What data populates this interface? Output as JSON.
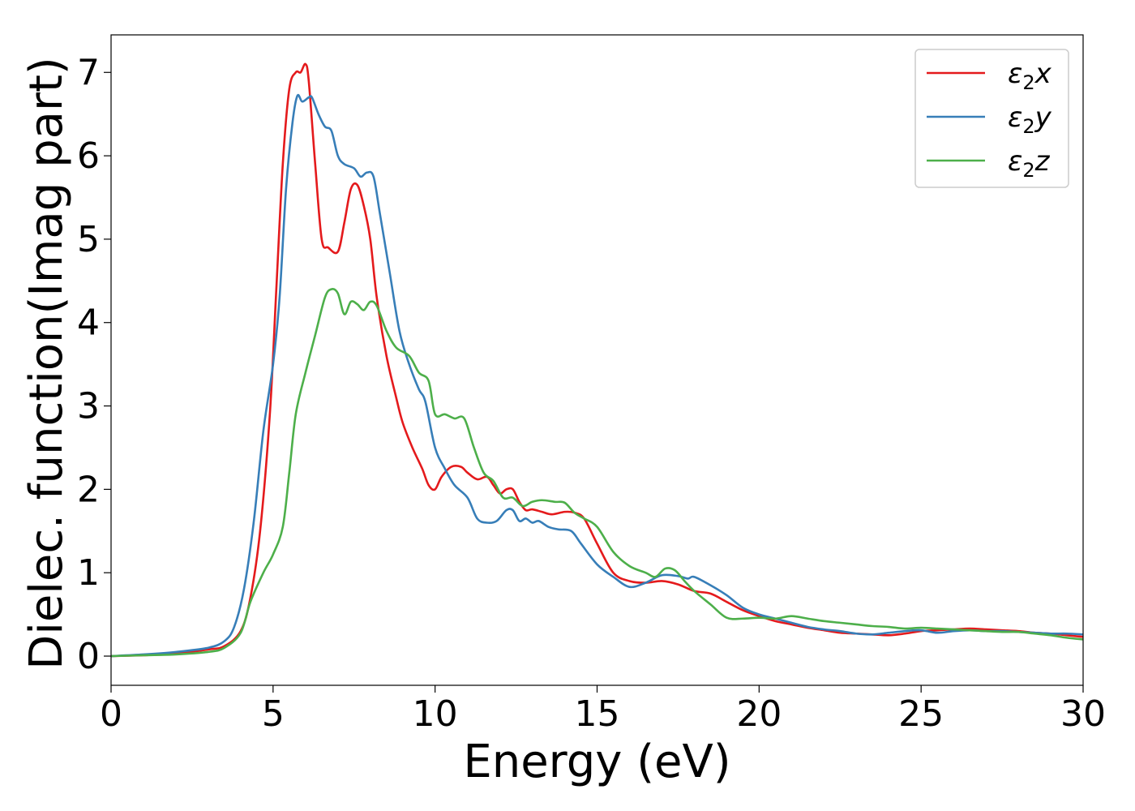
{
  "chart_data": {
    "type": "line",
    "title": "",
    "xlabel": "Energy (eV)",
    "ylabel": "Dielec. function(Imag part)",
    "xlim": [
      0,
      30
    ],
    "ylim": [
      -0.35,
      7.45
    ],
    "xticks": [
      0,
      5,
      10,
      15,
      20,
      25,
      30
    ],
    "yticks": [
      0,
      1,
      2,
      3,
      4,
      5,
      6,
      7
    ],
    "grid": false,
    "legend_position": "top-right",
    "series": [
      {
        "name": "ε2x",
        "legend_base": "ε",
        "legend_sub": "2",
        "legend_var": "x",
        "color": "#e41a1c",
        "x": [
          0,
          1,
          2,
          3,
          3.5,
          4,
          4.3,
          4.6,
          4.9,
          5.1,
          5.3,
          5.5,
          5.7,
          5.85,
          6.0,
          6.1,
          6.3,
          6.5,
          6.7,
          7.0,
          7.2,
          7.4,
          7.6,
          7.8,
          8.0,
          8.2,
          8.5,
          8.8,
          9.0,
          9.3,
          9.6,
          9.8,
          10.0,
          10.2,
          10.5,
          10.8,
          11.0,
          11.3,
          11.6,
          11.8,
          12.0,
          12.2,
          12.4,
          12.6,
          12.8,
          13.0,
          13.3,
          13.6,
          14.0,
          14.3,
          14.6,
          15.0,
          15.5,
          16.0,
          16.5,
          17.0,
          17.5,
          18.0,
          18.5,
          19.0,
          19.5,
          20.0,
          20.5,
          21.0,
          21.5,
          22.0,
          22.5,
          23.0,
          23.5,
          24.0,
          24.5,
          25.0,
          25.5,
          26.0,
          26.5,
          27.0,
          27.5,
          28.0,
          28.5,
          29.0,
          29.5,
          30.0
        ],
        "y": [
          0.0,
          0.01,
          0.03,
          0.08,
          0.12,
          0.3,
          0.7,
          1.5,
          2.9,
          4.4,
          5.9,
          6.8,
          7.0,
          7.0,
          7.1,
          6.9,
          5.9,
          5.0,
          4.9,
          4.85,
          5.2,
          5.6,
          5.65,
          5.4,
          5.0,
          4.3,
          3.6,
          3.1,
          2.8,
          2.5,
          2.25,
          2.05,
          2.0,
          2.15,
          2.27,
          2.27,
          2.2,
          2.12,
          2.15,
          2.05,
          1.95,
          2.0,
          2.0,
          1.85,
          1.75,
          1.76,
          1.73,
          1.7,
          1.73,
          1.72,
          1.65,
          1.35,
          1.0,
          0.9,
          0.88,
          0.9,
          0.86,
          0.78,
          0.75,
          0.65,
          0.55,
          0.48,
          0.42,
          0.38,
          0.34,
          0.31,
          0.28,
          0.27,
          0.26,
          0.25,
          0.27,
          0.3,
          0.31,
          0.32,
          0.33,
          0.32,
          0.31,
          0.3,
          0.28,
          0.27,
          0.25,
          0.23
        ]
      },
      {
        "name": "ε2y",
        "legend_base": "ε",
        "legend_sub": "2",
        "legend_var": "y",
        "color": "#377eb8",
        "x": [
          0,
          1,
          2,
          3,
          3.5,
          3.8,
          4.1,
          4.4,
          4.7,
          5.0,
          5.2,
          5.4,
          5.6,
          5.75,
          5.9,
          6.1,
          6.2,
          6.4,
          6.6,
          6.8,
          7.0,
          7.2,
          7.5,
          7.7,
          7.9,
          8.1,
          8.3,
          8.6,
          8.9,
          9.2,
          9.5,
          9.7,
          10.0,
          10.3,
          10.6,
          11.0,
          11.3,
          11.6,
          11.9,
          12.2,
          12.4,
          12.6,
          12.8,
          13.0,
          13.2,
          13.5,
          13.8,
          14.2,
          14.5,
          15.0,
          15.5,
          16.0,
          16.5,
          17.0,
          17.5,
          17.8,
          18.0,
          18.5,
          19.0,
          19.5,
          20.0,
          20.5,
          21.0,
          21.5,
          22.0,
          22.5,
          23.0,
          23.5,
          24.0,
          24.5,
          25.0,
          25.5,
          26.0,
          26.5,
          27.0,
          27.5,
          28.0,
          28.5,
          29.0,
          29.5,
          30.0
        ],
        "y": [
          0.0,
          0.02,
          0.05,
          0.1,
          0.18,
          0.35,
          0.8,
          1.6,
          2.7,
          3.5,
          4.3,
          5.6,
          6.4,
          6.72,
          6.65,
          6.7,
          6.7,
          6.5,
          6.35,
          6.3,
          6.0,
          5.9,
          5.85,
          5.75,
          5.8,
          5.75,
          5.3,
          4.6,
          3.9,
          3.5,
          3.2,
          3.05,
          2.5,
          2.25,
          2.05,
          1.9,
          1.65,
          1.6,
          1.62,
          1.75,
          1.75,
          1.62,
          1.65,
          1.6,
          1.62,
          1.55,
          1.52,
          1.5,
          1.35,
          1.1,
          0.95,
          0.83,
          0.88,
          0.97,
          0.96,
          0.93,
          0.95,
          0.85,
          0.73,
          0.58,
          0.5,
          0.45,
          0.4,
          0.35,
          0.32,
          0.3,
          0.27,
          0.26,
          0.28,
          0.3,
          0.31,
          0.28,
          0.3,
          0.31,
          0.3,
          0.3,
          0.29,
          0.28,
          0.27,
          0.27,
          0.26
        ]
      },
      {
        "name": "ε2z",
        "legend_base": "ε",
        "legend_sub": "2",
        "legend_var": "z",
        "color": "#4daf4a",
        "x": [
          0,
          1,
          2,
          3,
          3.5,
          4.0,
          4.3,
          4.7,
          5.0,
          5.3,
          5.5,
          5.7,
          6.0,
          6.3,
          6.6,
          6.8,
          7.0,
          7.2,
          7.4,
          7.6,
          7.8,
          8.0,
          8.2,
          8.5,
          8.8,
          9.2,
          9.5,
          9.8,
          10.0,
          10.3,
          10.6,
          10.9,
          11.2,
          11.5,
          11.8,
          12.1,
          12.4,
          12.7,
          13.0,
          13.3,
          13.7,
          14.0,
          14.3,
          14.6,
          15.0,
          15.5,
          16.0,
          16.5,
          16.8,
          17.1,
          17.4,
          17.7,
          18.0,
          18.5,
          19.0,
          19.5,
          20.0,
          20.5,
          21.0,
          21.5,
          22.0,
          22.5,
          23.0,
          23.5,
          24.0,
          24.5,
          25.0,
          25.5,
          26.0,
          26.5,
          27.0,
          27.5,
          28.0,
          28.5,
          29.0,
          29.5,
          30.0
        ],
        "y": [
          0.0,
          0.01,
          0.02,
          0.05,
          0.1,
          0.28,
          0.65,
          1.0,
          1.22,
          1.55,
          2.2,
          2.9,
          3.4,
          3.85,
          4.3,
          4.4,
          4.35,
          4.1,
          4.25,
          4.22,
          4.15,
          4.25,
          4.2,
          3.9,
          3.7,
          3.6,
          3.4,
          3.3,
          2.9,
          2.9,
          2.85,
          2.85,
          2.5,
          2.2,
          2.1,
          1.9,
          1.9,
          1.8,
          1.85,
          1.87,
          1.85,
          1.84,
          1.72,
          1.65,
          1.55,
          1.25,
          1.08,
          1.0,
          0.95,
          1.05,
          1.03,
          0.9,
          0.78,
          0.62,
          0.46,
          0.45,
          0.46,
          0.45,
          0.48,
          0.45,
          0.42,
          0.4,
          0.38,
          0.36,
          0.35,
          0.33,
          0.34,
          0.33,
          0.32,
          0.31,
          0.3,
          0.29,
          0.29,
          0.27,
          0.25,
          0.22,
          0.2
        ]
      }
    ]
  }
}
